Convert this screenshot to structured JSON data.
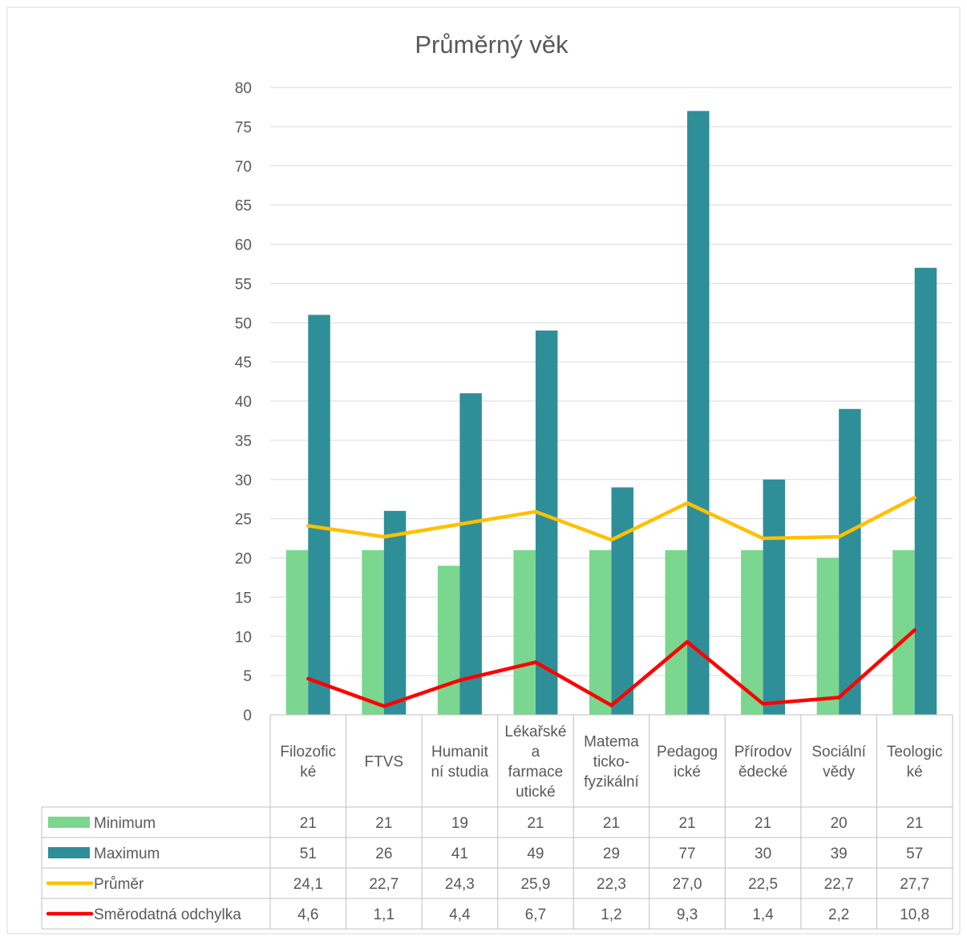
{
  "chart_data": {
    "type": "bar",
    "title": "Průměrný věk",
    "xlabel": "",
    "ylabel": "",
    "ylim": [
      0,
      80
    ],
    "yticks": [
      "0",
      "5",
      "10",
      "15",
      "20",
      "25",
      "30",
      "35",
      "40",
      "45",
      "50",
      "55",
      "60",
      "65",
      "70",
      "75",
      "80"
    ],
    "grid": true,
    "legend": "data-table",
    "categories": [
      [
        "Filozofic",
        "ké"
      ],
      [
        "FTVS"
      ],
      [
        "Humanit",
        "ní studia"
      ],
      [
        "Lékařské",
        "a",
        "farmace",
        "utické"
      ],
      [
        "Matema",
        "ticko-",
        "fyzikální"
      ],
      [
        "Pedagog",
        "ické"
      ],
      [
        "Přírodov",
        "ědecké"
      ],
      [
        "Sociální",
        "vědy"
      ],
      [
        "Teologic",
        "ké"
      ]
    ],
    "series": [
      {
        "name": "Minimum",
        "kind": "bar",
        "color": "#7bd68f",
        "values": [
          21,
          21,
          19,
          21,
          21,
          21,
          21,
          20,
          21
        ],
        "labels": [
          "21",
          "21",
          "19",
          "21",
          "21",
          "21",
          "21",
          "20",
          "21"
        ]
      },
      {
        "name": "Maximum",
        "kind": "bar",
        "color": "#2f8f98",
        "values": [
          51,
          26,
          41,
          49,
          29,
          77,
          30,
          39,
          57
        ],
        "labels": [
          "51",
          "26",
          "41",
          "49",
          "29",
          "77",
          "30",
          "39",
          "57"
        ]
      },
      {
        "name": "Průměr",
        "kind": "line",
        "color": "#ffc000",
        "values": [
          24.1,
          22.7,
          24.3,
          25.9,
          22.3,
          27.0,
          22.5,
          22.7,
          27.7
        ],
        "labels": [
          "24,1",
          "22,7",
          "24,3",
          "25,9",
          "22,3",
          "27,0",
          "22,5",
          "22,7",
          "27,7"
        ]
      },
      {
        "name": "Směrodatná odchylka",
        "kind": "line",
        "color": "#ff0000",
        "values": [
          4.6,
          1.1,
          4.4,
          6.7,
          1.2,
          9.3,
          1.4,
          2.2,
          10.8
        ],
        "labels": [
          "4,6",
          "1,1",
          "4,4",
          "6,7",
          "1,2",
          "9,3",
          "1,4",
          "2,2",
          "10,8"
        ]
      }
    ]
  }
}
